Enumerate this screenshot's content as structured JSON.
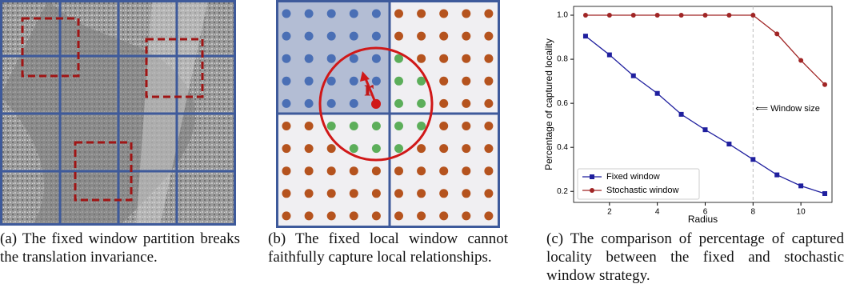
{
  "panels": {
    "a": {
      "caption": "(a) The fixed window partition breaks the translation invariance."
    },
    "b": {
      "caption": "(b) The fixed local window cannot faithfully capture local relationships.",
      "radius_label": "r"
    },
    "c": {
      "caption": "(c) The comparison of percentage of captured locality between the fixed and stochastic window strategy."
    }
  },
  "chart_data": {
    "type": "line",
    "x_label": "Radius",
    "y_label": "Percentage of captured locality",
    "x": [
      1,
      2,
      3,
      4,
      5,
      6,
      7,
      8,
      9,
      10,
      11
    ],
    "series": [
      {
        "name": "Fixed window",
        "color": "#1f1f9e",
        "marker": "square",
        "values": [
          0.905,
          0.82,
          0.725,
          0.645,
          0.55,
          0.48,
          0.415,
          0.345,
          0.275,
          0.225,
          0.19
        ]
      },
      {
        "name": "Stochastic window",
        "color": "#a02525",
        "marker": "circle",
        "values": [
          1,
          1,
          1,
          1,
          1,
          1,
          1,
          1,
          0.915,
          0.795,
          0.685
        ]
      }
    ],
    "xlim": [
      0.5,
      11.3
    ],
    "ylim": [
      0.15,
      1.04
    ],
    "xticks": [
      2,
      4,
      6,
      8,
      10
    ],
    "yticks": [
      0.2,
      0.4,
      0.6,
      0.8,
      {
        "value": 1,
        "label": "1.0"
      }
    ],
    "window_size": {
      "x": 8,
      "label": "⟸ Window size"
    },
    "legend": "lower left"
  }
}
